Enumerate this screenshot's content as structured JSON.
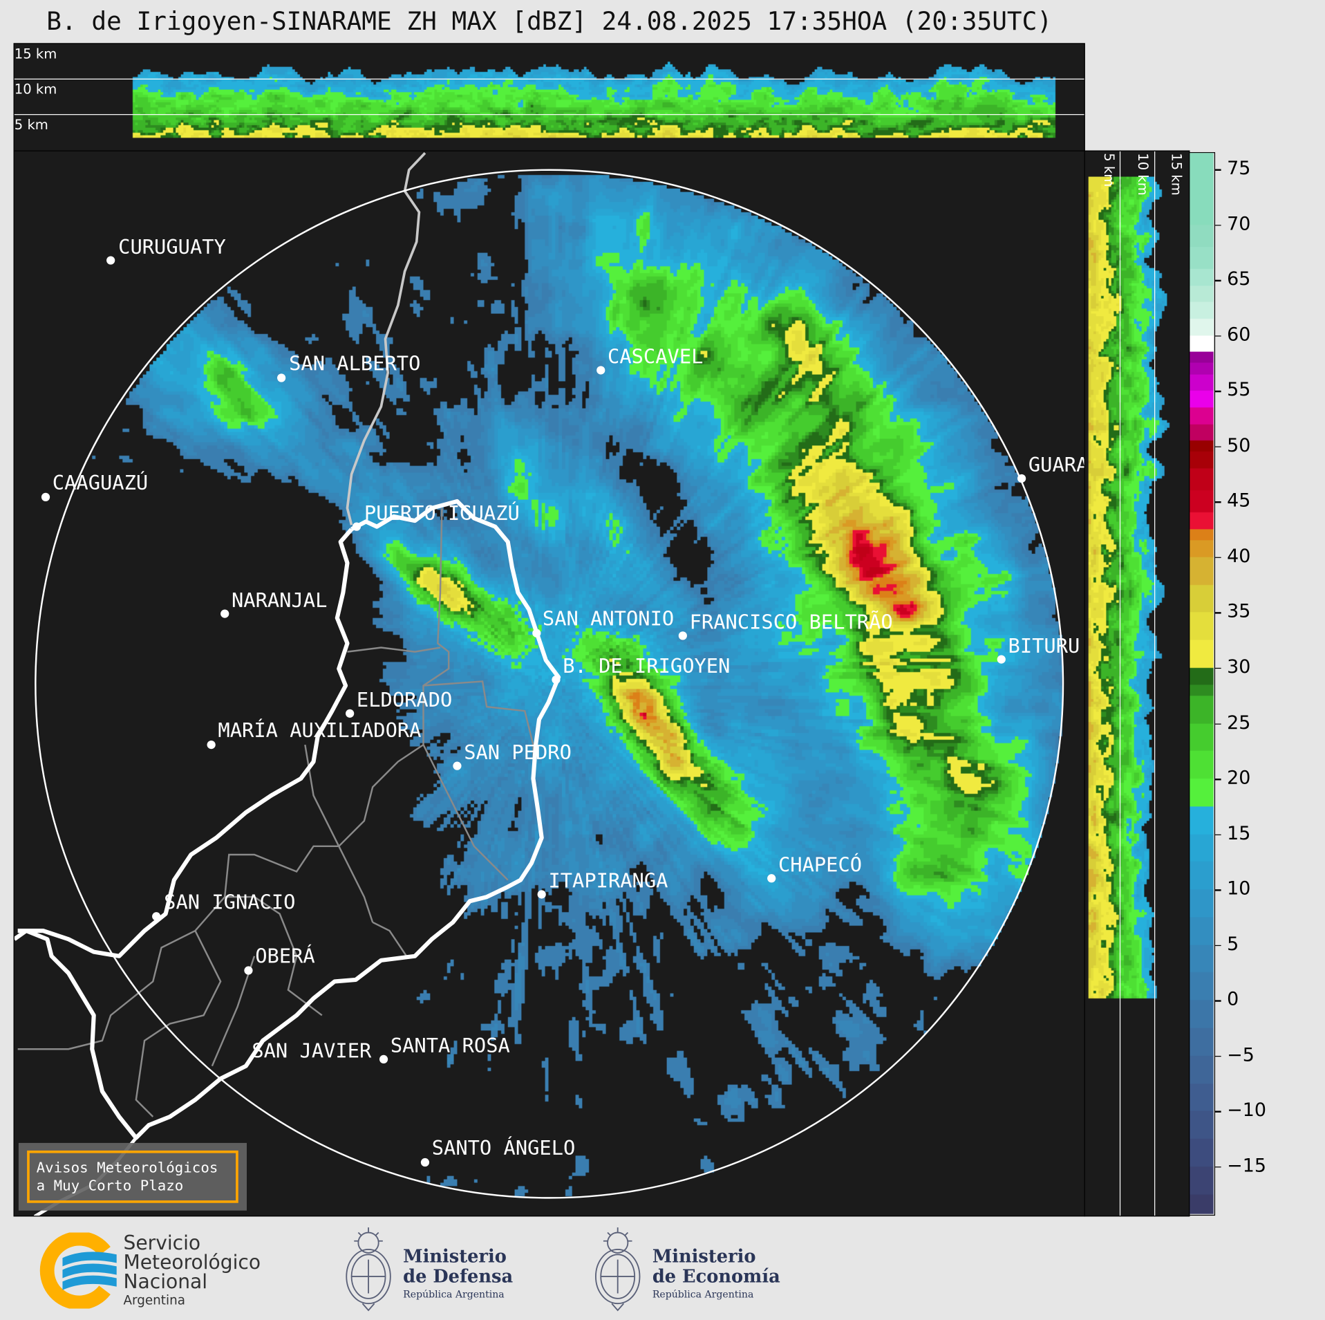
{
  "title": "B. de Irigoyen-SINARAME ZH MAX [dBZ] 24.08.2025 17:35HOA (20:35UTC)",
  "top_panel": {
    "height_labels": [
      "15 km",
      "10 km",
      "5 km"
    ]
  },
  "right_panel": {
    "height_labels": [
      "5 km",
      "10 km",
      "15 km"
    ]
  },
  "cities": [
    {
      "name": "CURUGUATY"
    },
    {
      "name": "SAN ALBERTO"
    },
    {
      "name": "CAAGUAZÚ"
    },
    {
      "name": "CASCAVEL"
    },
    {
      "name": "GUARA"
    },
    {
      "name": "PUERTO IGUAZÚ"
    },
    {
      "name": "NARANJAL"
    },
    {
      "name": "SAN ANTONIO"
    },
    {
      "name": "FRANCISCO BELTRÃO"
    },
    {
      "name": "BITURU"
    },
    {
      "name": "B. DE IRIGOYEN"
    },
    {
      "name": "ELDORADO"
    },
    {
      "name": "MARÍA AUXILIADORA"
    },
    {
      "name": "SAN PEDRO"
    },
    {
      "name": "CHAPECÓ"
    },
    {
      "name": "ITAPIRANGA"
    },
    {
      "name": "SAN IGNACIO"
    },
    {
      "name": "OBERÁ"
    },
    {
      "name": "SAN JAVIER"
    },
    {
      "name": "SANTA ROSA"
    },
    {
      "name": "SANTO ÁNGELO"
    }
  ],
  "colorbar": {
    "unit": "dBZ",
    "range": [
      -19.5,
      76.5
    ],
    "ticks": [
      "75",
      "70",
      "65",
      "60",
      "55",
      "50",
      "45",
      "40",
      "35",
      "30",
      "25",
      "20",
      "15",
      "10",
      "5",
      "0",
      "−5",
      "−10",
      "−15"
    ],
    "tick_values": [
      75,
      70,
      65,
      60,
      55,
      50,
      45,
      40,
      35,
      30,
      25,
      20,
      15,
      10,
      5,
      0,
      -5,
      -10,
      -15
    ],
    "colorscale": [
      [
        -20,
        "#3a3c68"
      ],
      [
        -17.5,
        "#3c4473"
      ],
      [
        -15,
        "#3d4c7e"
      ],
      [
        -12.5,
        "#3e5587"
      ],
      [
        -10,
        "#3f5d90"
      ],
      [
        -7.5,
        "#3f6698"
      ],
      [
        -5,
        "#3e6ea0"
      ],
      [
        -2.5,
        "#3c76a8"
      ],
      [
        0,
        "#3a7eb0"
      ],
      [
        2.5,
        "#3786b8"
      ],
      [
        5,
        "#338ec0"
      ],
      [
        7.5,
        "#2f96c8"
      ],
      [
        10,
        "#2b9ece"
      ],
      [
        12.5,
        "#28a6d4"
      ],
      [
        15,
        "#26b0dc"
      ],
      [
        17.5,
        "#55f03c"
      ],
      [
        20,
        "#4ee034"
      ],
      [
        22.5,
        "#45cc2e"
      ],
      [
        25,
        "#3cb428"
      ],
      [
        27.5,
        "#2e8c20"
      ],
      [
        28.5,
        "#236c18"
      ],
      [
        30,
        "#f0ea40"
      ],
      [
        32.5,
        "#e4de3c"
      ],
      [
        35,
        "#d8ce38"
      ],
      [
        37.5,
        "#d6b232"
      ],
      [
        40,
        "#da9a24"
      ],
      [
        41.5,
        "#dc8018"
      ],
      [
        42.5,
        "#ea1034"
      ],
      [
        44,
        "#cc0020"
      ],
      [
        46,
        "#c00018"
      ],
      [
        48,
        "#a80008"
      ],
      [
        49.5,
        "#980000"
      ],
      [
        50.5,
        "#c00060"
      ],
      [
        52,
        "#dc0090"
      ],
      [
        53.5,
        "#ea00ea"
      ],
      [
        55,
        "#cc00cc"
      ],
      [
        56.5,
        "#b000b0"
      ],
      [
        57.5,
        "#980098"
      ],
      [
        58.5,
        "#ffffff"
      ],
      [
        60,
        "#e0f6ec"
      ],
      [
        61.5,
        "#c8f0e0"
      ],
      [
        63,
        "#b8ead6"
      ],
      [
        64.5,
        "#a8e6d0"
      ],
      [
        66,
        "#98e0c6"
      ],
      [
        68,
        "#90dcc0"
      ],
      [
        70,
        "#88dcbc"
      ]
    ]
  },
  "legend": {
    "lines": [
      "Avisos Meteorológicos",
      "a Muy Corto Plazo"
    ]
  },
  "logos": {
    "smn": {
      "lines": [
        "Servicio",
        "Meteorológico",
        "Nacional"
      ],
      "country": "Argentina",
      "colors": {
        "ring": "#ffb000",
        "waves": "#1e9ad6"
      }
    },
    "defensa": {
      "lines": [
        "Ministerio",
        "de Defensa"
      ],
      "sub": "República Argentina"
    },
    "economia": {
      "lines": [
        "Ministerio",
        "de Economía"
      ],
      "sub": "República Argentina"
    }
  }
}
